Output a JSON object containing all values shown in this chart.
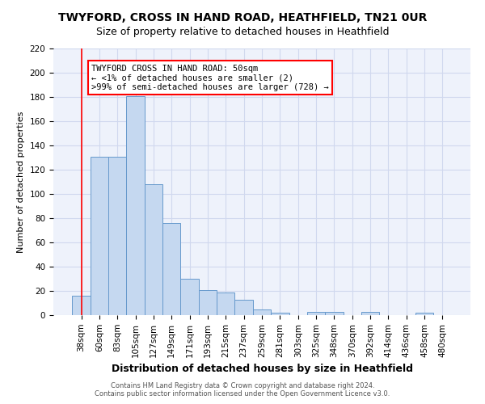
{
  "title": "TWYFORD, CROSS IN HAND ROAD, HEATHFIELD, TN21 0UR",
  "subtitle": "Size of property relative to detached houses in Heathfield",
  "xlabel": "Distribution of detached houses by size in Heathfield",
  "ylabel": "Number of detached properties",
  "categories": [
    "38sqm",
    "60sqm",
    "83sqm",
    "105sqm",
    "127sqm",
    "149sqm",
    "171sqm",
    "193sqm",
    "215sqm",
    "237sqm",
    "259sqm",
    "281sqm",
    "303sqm",
    "325sqm",
    "348sqm",
    "370sqm",
    "392sqm",
    "414sqm",
    "436sqm",
    "458sqm",
    "480sqm"
  ],
  "values": [
    16,
    131,
    131,
    181,
    108,
    76,
    30,
    21,
    19,
    13,
    5,
    2,
    0,
    3,
    3,
    0,
    3,
    0,
    0,
    2,
    0
  ],
  "bar_color": "#c5d8f0",
  "bar_edge_color": "#6699cc",
  "red_line_x": 0,
  "ylim": [
    0,
    220
  ],
  "yticks": [
    0,
    20,
    40,
    60,
    80,
    100,
    120,
    140,
    160,
    180,
    200,
    220
  ],
  "annotation_text": "TWYFORD CROSS IN HAND ROAD: 50sqm\n← <1% of detached houses are smaller (2)\n>99% of semi-detached houses are larger (728) →",
  "annotation_box_color": "white",
  "annotation_box_edge_color": "red",
  "footer_line1": "Contains HM Land Registry data © Crown copyright and database right 2024.",
  "footer_line2": "Contains public sector information licensed under the Open Government Licence v3.0.",
  "bg_color": "#eef2fb",
  "grid_color": "#d0d8ee",
  "title_fontsize": 10,
  "subtitle_fontsize": 9,
  "xlabel_fontsize": 9,
  "ylabel_fontsize": 8,
  "tick_fontsize": 7.5,
  "ann_fontsize": 7.5,
  "footer_fontsize": 6
}
